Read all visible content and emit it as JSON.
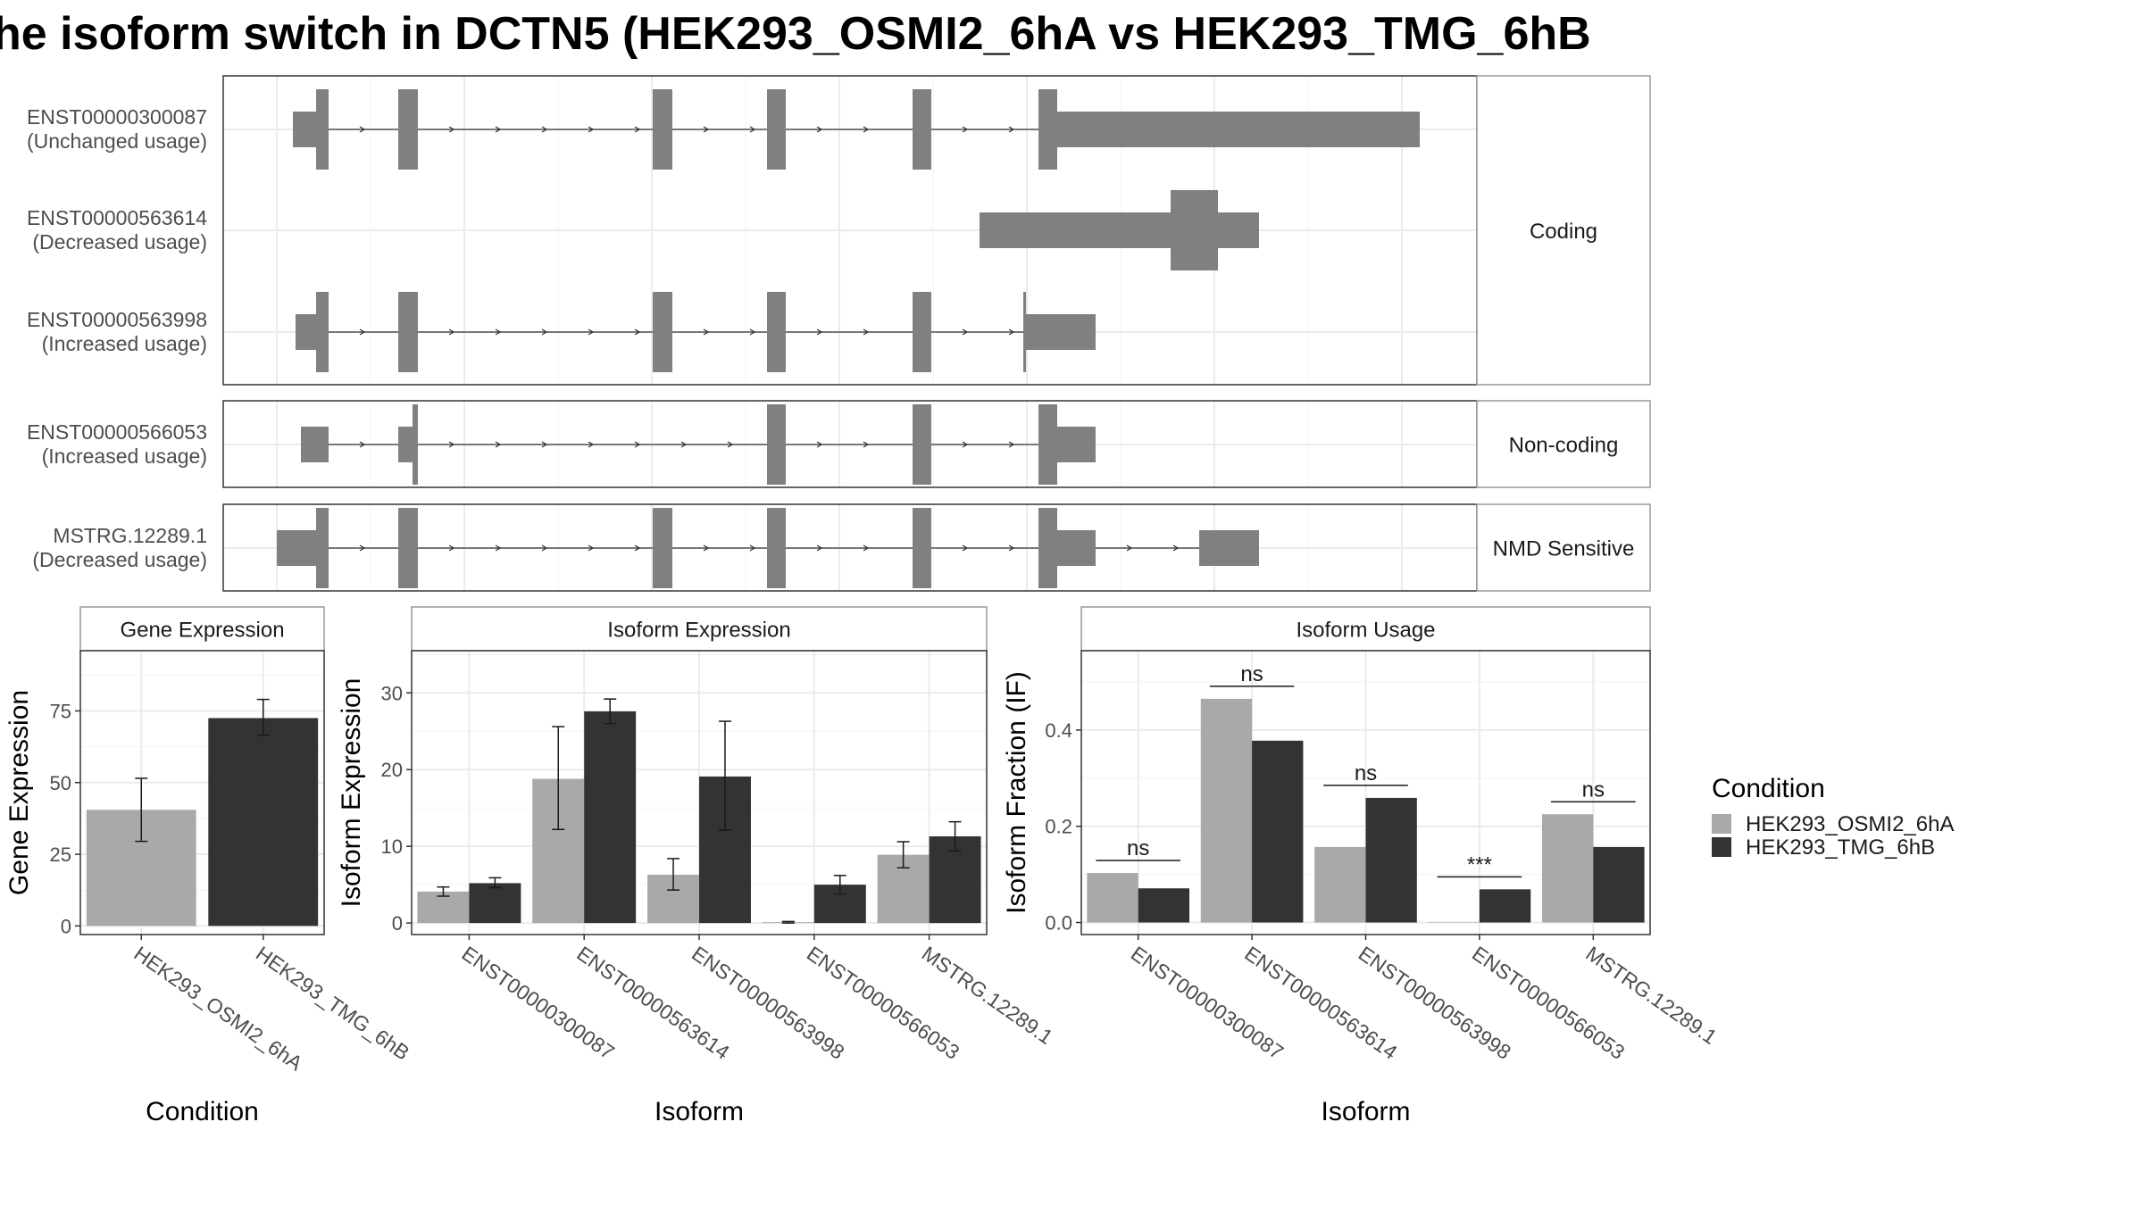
{
  "title": "he isoform switch in DCTN5 (HEK293_OSMI2_6hA vs HEK293_TMG_6hB",
  "colors": {
    "cond1": "#a9a9a9",
    "cond2": "#333333",
    "exon": "#808080",
    "grid": "#ebebeb",
    "border": "#333333",
    "strip_border": "#999999"
  },
  "chart_data": [
    {
      "type": "other",
      "name": "transcript_structure",
      "isoforms": [
        {
          "id": "ENST00000300087",
          "usage": "(Unchanged usage)",
          "category": "Coding"
        },
        {
          "id": "ENST00000563614",
          "usage": "(Decreased usage)",
          "category": "Coding"
        },
        {
          "id": "ENST00000563998",
          "usage": "(Increased usage)",
          "category": "Coding"
        },
        {
          "id": "ENST00000566053",
          "usage": "(Increased usage)",
          "category": "Non-coding"
        },
        {
          "id": "MSTRG.12289.1",
          "usage": "(Decreased usage)",
          "category": "NMD Sensitive"
        }
      ],
      "categories": [
        "Coding",
        "Non-coding",
        "NMD Sensitive"
      ]
    },
    {
      "type": "bar",
      "title": "Gene Expression",
      "xlabel": "Condition",
      "ylabel": "Gene Expression",
      "categories": [
        "HEK293_OSMI2_6hA",
        "HEK293_TMG_6hB"
      ],
      "values": [
        40.5,
        72.5
      ],
      "errors": [
        [
          29.5,
          51.5
        ],
        [
          66.5,
          79
        ]
      ],
      "ylim": [
        -3,
        96
      ],
      "yticks": [
        0,
        25,
        50,
        75
      ]
    },
    {
      "type": "bar",
      "title": "Isoform Expression",
      "xlabel": "Isoform",
      "ylabel": "Isoform Expression",
      "categories": [
        "ENST00000300087",
        "ENST00000563614",
        "ENST00000563998",
        "ENST00000566053",
        "MSTRG.12289.1"
      ],
      "series": [
        {
          "name": "HEK293_OSMI2_6hA",
          "values": [
            4.1,
            18.8,
            6.3,
            0.1,
            8.9
          ],
          "errors": [
            [
              3.5,
              4.7
            ],
            [
              12.2,
              25.6
            ],
            [
              4.3,
              8.4
            ],
            [
              0.0,
              0.2
            ],
            [
              7.2,
              10.6
            ]
          ]
        },
        {
          "name": "HEK293_TMG_6hB",
          "values": [
            5.2,
            27.6,
            19.1,
            5.0,
            11.3
          ],
          "errors": [
            [
              4.6,
              5.9
            ],
            [
              26.0,
              29.2
            ],
            [
              12.1,
              26.3
            ],
            [
              3.8,
              6.2
            ],
            [
              9.4,
              13.2
            ]
          ]
        }
      ],
      "ylim": [
        -1.5,
        35.5
      ],
      "yticks": [
        0,
        10,
        20,
        30
      ]
    },
    {
      "type": "bar",
      "title": "Isoform Usage",
      "xlabel": "Isoform",
      "ylabel": "Isoform Fraction (IF)",
      "categories": [
        "ENST00000300087",
        "ENST00000563614",
        "ENST00000563998",
        "ENST00000566053",
        "MSTRG.12289.1"
      ],
      "series": [
        {
          "name": "HEK293_OSMI2_6hA",
          "values": [
            0.103,
            0.465,
            0.157,
            0.0,
            0.225
          ]
        },
        {
          "name": "HEK293_TMG_6hB",
          "values": [
            0.071,
            0.378,
            0.259,
            0.069,
            0.157
          ]
        }
      ],
      "significance": [
        "ns",
        "ns",
        "ns",
        "***",
        "ns"
      ],
      "ylim": [
        -0.025,
        0.565
      ],
      "yticks": [
        0.0,
        0.2,
        0.4
      ],
      "ytick_labels": [
        "0.0",
        "0.2",
        "0.4"
      ]
    }
  ],
  "legend": {
    "title": "Condition",
    "items": [
      "HEK293_OSMI2_6hA",
      "HEK293_TMG_6hB"
    ]
  }
}
